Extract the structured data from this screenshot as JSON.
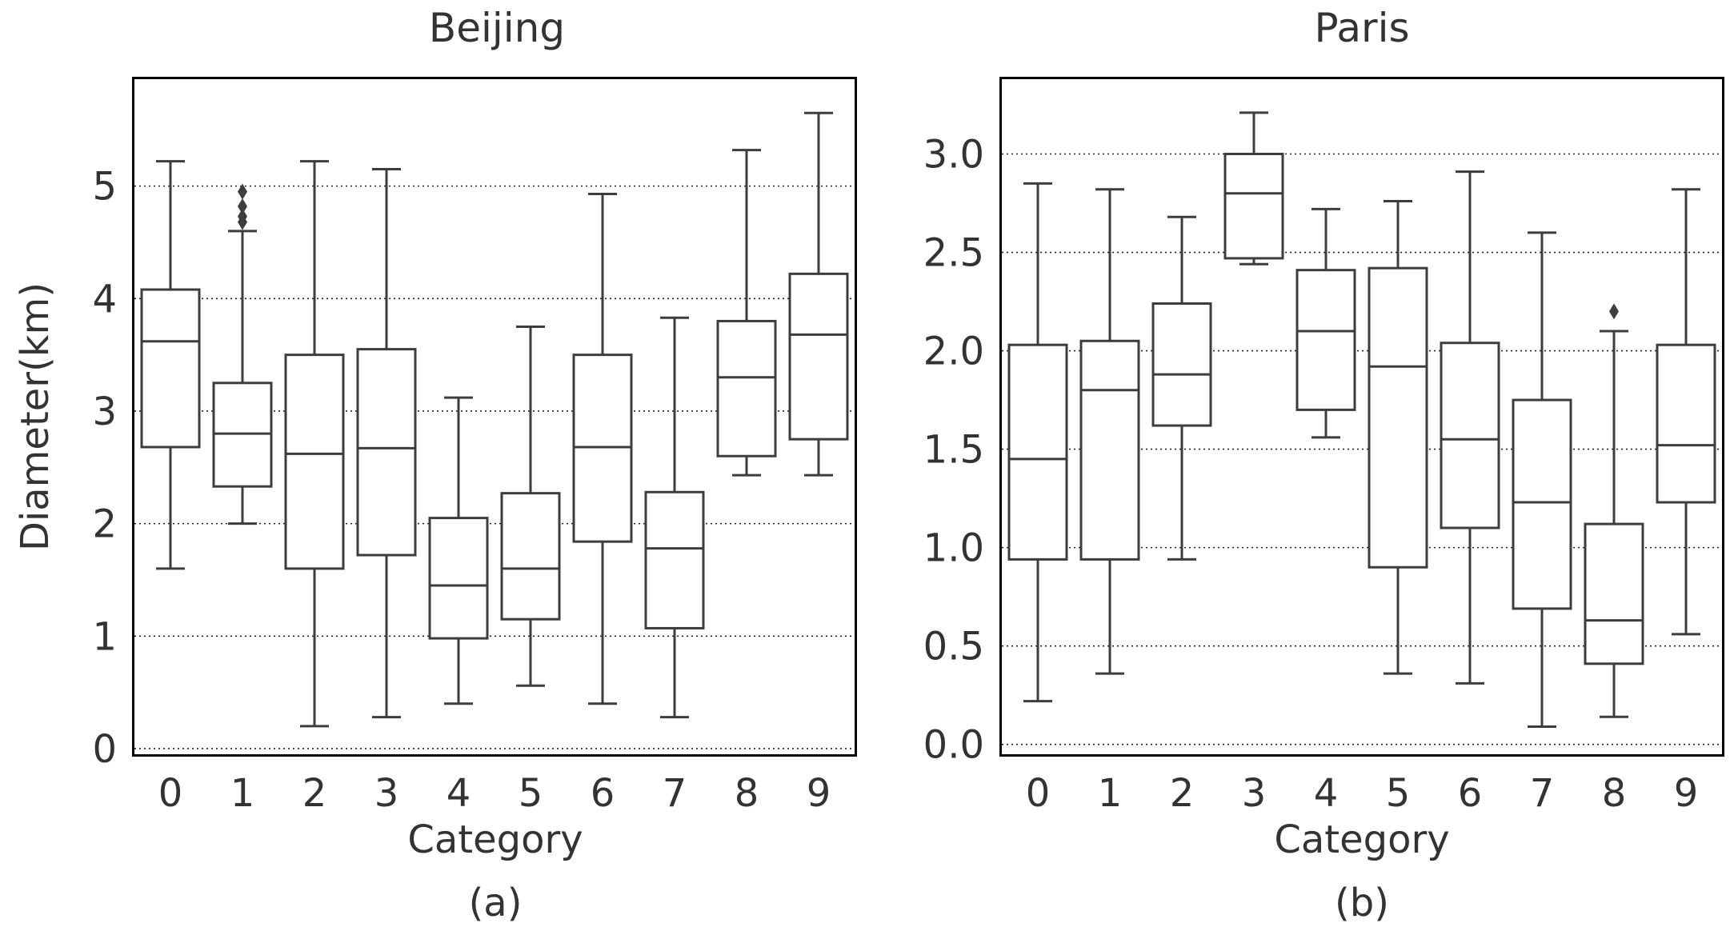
{
  "chart_data": [
    {
      "type": "box",
      "title": "Beijing",
      "xlabel": "Category",
      "ylabel": "Diameter(km)",
      "caption": "(a)",
      "ylim": [
        -0.05,
        5.95
      ],
      "yticks": [
        "0",
        "1",
        "2",
        "3",
        "4",
        "5"
      ],
      "categories": [
        "0",
        "1",
        "2",
        "3",
        "4",
        "5",
        "6",
        "7",
        "8",
        "9"
      ],
      "grid": "horizontal dotted",
      "boxes": [
        {
          "category": "0",
          "whisker_low": 1.6,
          "q1": 2.68,
          "median": 3.62,
          "q3": 4.08,
          "whisker_high": 5.22,
          "outliers": []
        },
        {
          "category": "1",
          "whisker_low": 2.0,
          "q1": 2.33,
          "median": 2.8,
          "q3": 3.25,
          "whisker_high": 4.6,
          "outliers": [
            4.68,
            4.73,
            4.82,
            4.95
          ]
        },
        {
          "category": "2",
          "whisker_low": 0.2,
          "q1": 1.6,
          "median": 2.62,
          "q3": 3.5,
          "whisker_high": 5.22,
          "outliers": []
        },
        {
          "category": "3",
          "whisker_low": 0.28,
          "q1": 1.72,
          "median": 2.67,
          "q3": 3.55,
          "whisker_high": 5.15,
          "outliers": []
        },
        {
          "category": "4",
          "whisker_low": 0.4,
          "q1": 0.98,
          "median": 1.45,
          "q3": 2.05,
          "whisker_high": 3.12,
          "outliers": []
        },
        {
          "category": "5",
          "whisker_low": 0.56,
          "q1": 1.15,
          "median": 1.6,
          "q3": 2.27,
          "whisker_high": 3.75,
          "outliers": []
        },
        {
          "category": "6",
          "whisker_low": 0.4,
          "q1": 1.84,
          "median": 2.68,
          "q3": 3.5,
          "whisker_high": 4.93,
          "outliers": []
        },
        {
          "category": "7",
          "whisker_low": 0.28,
          "q1": 1.07,
          "median": 1.78,
          "q3": 2.28,
          "whisker_high": 3.83,
          "outliers": []
        },
        {
          "category": "8",
          "whisker_low": 2.43,
          "q1": 2.6,
          "median": 3.3,
          "q3": 3.8,
          "whisker_high": 5.32,
          "outliers": []
        },
        {
          "category": "9",
          "whisker_low": 2.43,
          "q1": 2.75,
          "median": 3.68,
          "q3": 4.22,
          "whisker_high": 5.65,
          "outliers": []
        }
      ]
    },
    {
      "type": "box",
      "title": "Paris",
      "xlabel": "Category",
      "ylabel": "",
      "caption": "(b)",
      "ylim": [
        -0.05,
        3.38
      ],
      "yticks": [
        "0.0",
        "0.5",
        "1.0",
        "1.5",
        "2.0",
        "2.5",
        "3.0"
      ],
      "categories": [
        "0",
        "1",
        "2",
        "3",
        "4",
        "5",
        "6",
        "7",
        "8",
        "9"
      ],
      "grid": "horizontal dotted",
      "boxes": [
        {
          "category": "0",
          "whisker_low": 0.22,
          "q1": 0.94,
          "median": 1.45,
          "q3": 2.03,
          "whisker_high": 2.85,
          "outliers": []
        },
        {
          "category": "1",
          "whisker_low": 0.36,
          "q1": 0.94,
          "median": 1.8,
          "q3": 2.05,
          "whisker_high": 2.82,
          "outliers": []
        },
        {
          "category": "2",
          "whisker_low": 0.94,
          "q1": 1.62,
          "median": 1.88,
          "q3": 2.24,
          "whisker_high": 2.68,
          "outliers": []
        },
        {
          "category": "3",
          "whisker_low": 2.44,
          "q1": 2.47,
          "median": 2.8,
          "q3": 3.0,
          "whisker_high": 3.21,
          "outliers": []
        },
        {
          "category": "4",
          "whisker_low": 1.56,
          "q1": 1.7,
          "median": 2.1,
          "q3": 2.41,
          "whisker_high": 2.72,
          "outliers": []
        },
        {
          "category": "5",
          "whisker_low": 0.36,
          "q1": 0.9,
          "median": 1.92,
          "q3": 2.42,
          "whisker_high": 2.76,
          "outliers": []
        },
        {
          "category": "6",
          "whisker_low": 0.31,
          "q1": 1.1,
          "median": 1.55,
          "q3": 2.04,
          "whisker_high": 2.91,
          "outliers": []
        },
        {
          "category": "7",
          "whisker_low": 0.09,
          "q1": 0.69,
          "median": 1.23,
          "q3": 1.75,
          "whisker_high": 2.6,
          "outliers": []
        },
        {
          "category": "8",
          "whisker_low": 0.14,
          "q1": 0.41,
          "median": 0.63,
          "q3": 1.12,
          "whisker_high": 2.1,
          "outliers": [
            2.2
          ]
        },
        {
          "category": "9",
          "whisker_low": 0.56,
          "q1": 1.23,
          "median": 1.52,
          "q3": 2.03,
          "whisker_high": 2.82,
          "outliers": []
        }
      ]
    }
  ]
}
